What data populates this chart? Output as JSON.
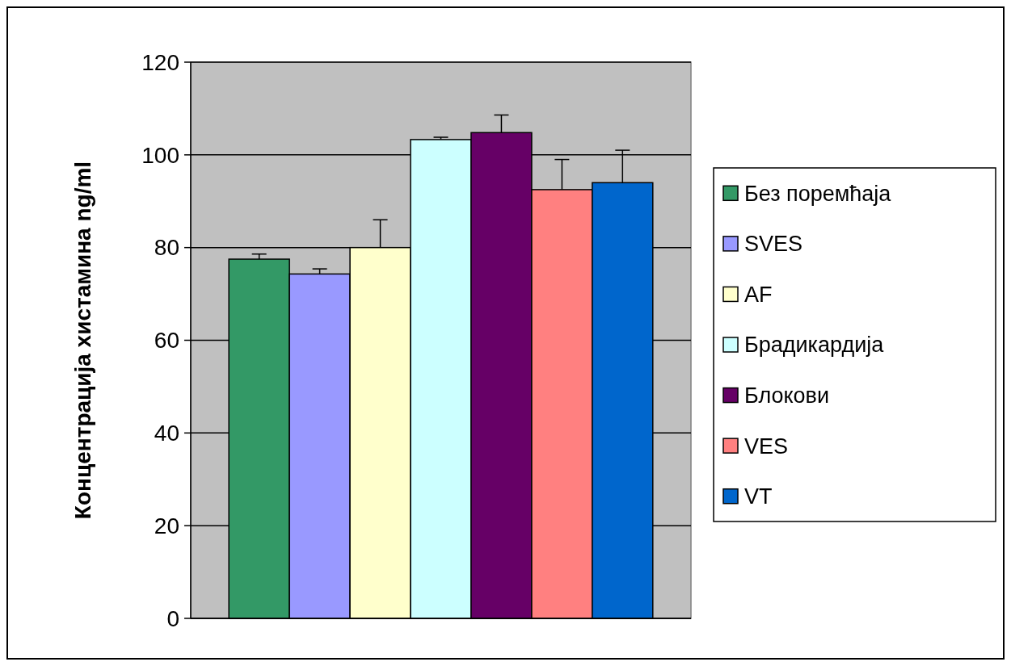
{
  "chart_data": {
    "type": "bar",
    "ylabel": "Концентрација хистамина ng/ml",
    "categories": [
      null
    ],
    "series": [
      {
        "name": "Без поремћаја",
        "color": "#339966",
        "values": [
          77.5
        ],
        "errors": [
          [
            77.5,
            78.6
          ]
        ]
      },
      {
        "name": "SVES",
        "color": "#9999ff",
        "values": [
          74.3
        ],
        "errors": [
          [
            74.3,
            75.4
          ]
        ]
      },
      {
        "name": "AF",
        "color": "#ffffcc",
        "values": [
          80
        ],
        "errors": [
          [
            80,
            86
          ]
        ]
      },
      {
        "name": "Брадикардија",
        "color": "#ccffff",
        "values": [
          103.3
        ],
        "errors": [
          [
            103.3,
            103.8
          ]
        ]
      },
      {
        "name": "Блокови",
        "color": "#660066",
        "values": [
          104.8
        ],
        "errors": [
          [
            104.8,
            108.6
          ]
        ]
      },
      {
        "name": "VES",
        "color": "#ff8080",
        "values": [
          92.5
        ],
        "errors": [
          [
            92.5,
            99
          ]
        ]
      },
      {
        "name": "VT",
        "color": "#0066cc",
        "values": [
          94
        ],
        "errors": [
          [
            94,
            101
          ]
        ]
      }
    ],
    "ylim": [
      0,
      120
    ],
    "yticks": [
      0,
      20,
      40,
      60,
      80,
      100,
      120
    ],
    "grid": "y",
    "legend": "right"
  }
}
